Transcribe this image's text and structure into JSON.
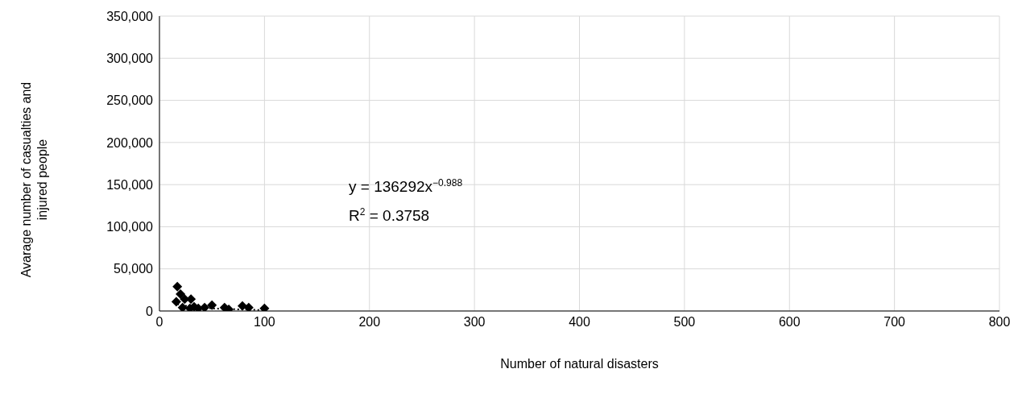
{
  "chart_data": {
    "type": "scatter",
    "xlabel": "Number of natural disasters",
    "ylabel": "Avarage number of casualties and injured people",
    "xlim": [
      0,
      800
    ],
    "xticks": [
      0,
      100,
      200,
      300,
      400,
      500,
      600,
      700,
      800
    ],
    "ylim": [
      0,
      350000
    ],
    "yticks": [
      0,
      {
        "value": 50000,
        "label": "50,000"
      },
      {
        "value": 100000,
        "label": "100,000"
      },
      {
        "value": 150000,
        "label": "150,000"
      },
      {
        "value": 200000,
        "label": "200,000"
      },
      {
        "value": 250000,
        "label": "250,000"
      },
      {
        "value": 300000,
        "label": "300,000"
      },
      {
        "value": 350000,
        "label": "350,000"
      }
    ],
    "grid": true,
    "marker": "diamond",
    "series": [
      {
        "color": "#000000",
        "x": [
          17,
          20,
          16,
          24,
          30,
          24,
          22,
          29,
          33,
          37,
          43,
          50,
          62,
          66,
          79,
          85,
          100
        ],
        "values": [
          29000,
          20000,
          11000,
          14000,
          14000,
          null,
          4000,
          3000,
          5000,
          3000,
          4000,
          7000,
          4000,
          2000,
          6000,
          4000,
          3000
        ]
      },
      {
        "type": "line",
        "color": "#000000",
        "line_style": "dotted",
        "marker": "none",
        "x": [
          17,
          30,
          50,
          100
        ],
        "values": [
          8000,
          5000,
          3000,
          1000
        ]
      }
    ],
    "annotations": [
      "y = 136292x$^{−0.988}$",
      "R$^{2}$ = 0.3758"
    ]
  }
}
